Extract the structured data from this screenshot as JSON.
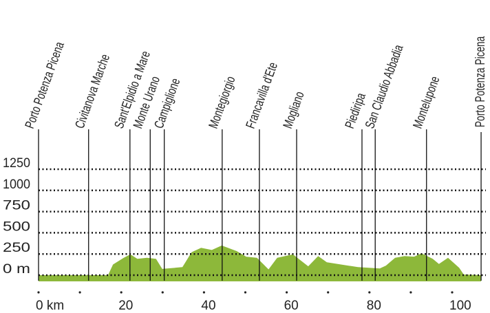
{
  "chart_data": {
    "type": "area",
    "title": "",
    "xlabel": "km",
    "ylabel": "m",
    "xlim": [
      0,
      107
    ],
    "ylim": [
      0,
      1250
    ],
    "x_ticks": [
      0,
      20,
      40,
      60,
      80,
      100
    ],
    "x_tick_labels": [
      "0 km",
      "20",
      "40",
      "60",
      "80",
      "100"
    ],
    "y_ticks": [
      0,
      250,
      500,
      750,
      1000,
      1250
    ],
    "y_tick_labels": [
      "0 m",
      "250",
      "500",
      "750",
      "1000",
      "1250"
    ],
    "grid": true,
    "fill_color": "#8db83a",
    "profile": [
      [
        0,
        0
      ],
      [
        16.8,
        0
      ],
      [
        18,
        126
      ],
      [
        20.6,
        205
      ],
      [
        22.2,
        245
      ],
      [
        23.9,
        192
      ],
      [
        26.2,
        205
      ],
      [
        28.4,
        192
      ],
      [
        29.9,
        74
      ],
      [
        34.8,
        95
      ],
      [
        37,
        271
      ],
      [
        39.3,
        323
      ],
      [
        41.9,
        297
      ],
      [
        44.3,
        350
      ],
      [
        47.9,
        284
      ],
      [
        50.2,
        218
      ],
      [
        52.8,
        205
      ],
      [
        55.6,
        68
      ],
      [
        57.7,
        205
      ],
      [
        61.5,
        245
      ],
      [
        65.2,
        105
      ],
      [
        67.6,
        226
      ],
      [
        69.7,
        153
      ],
      [
        77.2,
        95
      ],
      [
        82.5,
        79
      ],
      [
        84,
        113
      ],
      [
        86.2,
        205
      ],
      [
        88.5,
        226
      ],
      [
        90.8,
        218
      ],
      [
        92.6,
        258
      ],
      [
        95.3,
        192
      ],
      [
        96.8,
        132
      ],
      [
        99,
        205
      ],
      [
        101.7,
        87
      ],
      [
        102.8,
        8
      ],
      [
        107,
        0
      ]
    ],
    "places": [
      {
        "name": "Porto Potenza Picena",
        "km": 0
      },
      {
        "name": "Civitanova Marche",
        "km": 12.1
      },
      {
        "name": "Sant'Elpidio a Mare",
        "km": 22.1
      },
      {
        "name": "Monte Urano",
        "km": 27
      },
      {
        "name": "Campiglione",
        "km": 30.4
      },
      {
        "name": "Montegiorgio",
        "km": 44.4
      },
      {
        "name": "Francavilla d'Ete",
        "km": 53.4
      },
      {
        "name": "Mogliano",
        "km": 62.4
      },
      {
        "name": "Piediripa",
        "km": 78.2
      },
      {
        "name": "San Claudio Abbadia",
        "km": 81.4
      },
      {
        "name": "Montelupone",
        "km": 93.8
      },
      {
        "name": "Porto Potenza Picena",
        "km": 107
      }
    ]
  }
}
